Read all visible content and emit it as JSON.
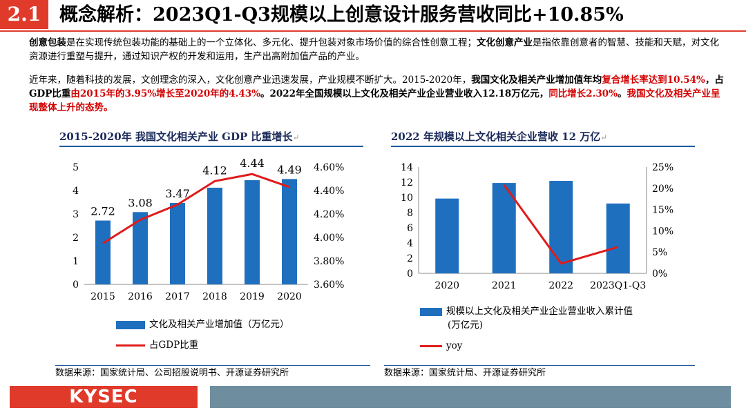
{
  "title": {
    "section_number": "2.1",
    "text": "概念解析：2023Q1-Q3规模以上创意设计服务营收同比+10.85%"
  },
  "paragraph1": {
    "t1": "创意包装",
    "t2": "是在实现传统包装功能的基础上的一个立体化、多元化、提升包装对象市场价值的综合性创意工程；",
    "t3": "文化创意产业",
    "t4": "是指依靠创意者的智慧、技能和天赋，对文化资源进行重塑与提升，通过知识产权的开发和运用，生产出高附加值产品的产业。"
  },
  "paragraph2": {
    "t1": "近年来，随着科技的发展，文创理念的深入，文化创意产业迅速发展，产业规模不断扩大。2015-2020年，",
    "t2": "我国文化及相关产业增加值年均",
    "t3": "复合增长率达到10.54%",
    "t4": "，占GDP比重",
    "t5": "由2015年的3.95%增长至2020年的4.43%",
    "t6": "。2022年全国规模以上文化及相关产业企业营业收入12.18万亿元，",
    "t7": "同比增长2.30%",
    "t8": "。",
    "t9": "我国文化及相关产业呈现整体上升的态势。"
  },
  "left_header": "2015-2020年   我国文化相关产业 GDP 比重增长",
  "right_header": "2022 年规模以上文化相关企业营收 12 万亿",
  "return_mark": "↵",
  "chart_data": [
    {
      "type": "bar",
      "categories": [
        "2015",
        "2016",
        "2017",
        "2018",
        "2019",
        "2020"
      ],
      "series": [
        {
          "name": "文化及相关产业增加值（万亿元）",
          "type": "bar",
          "values": [
            2.72,
            3.08,
            3.47,
            4.12,
            4.44,
            4.49
          ],
          "axis": "left",
          "color": "#1f6fbf"
        },
        {
          "name": "占GDP比重",
          "type": "line",
          "values": [
            3.95,
            4.15,
            4.28,
            4.48,
            4.54,
            4.43
          ],
          "axis": "right",
          "color": "#e01b1b"
        }
      ],
      "value_labels": [
        "2.72",
        "3.08",
        "3.47",
        "4.12",
        "4.44",
        "4.49"
      ],
      "y_left": {
        "min": 0,
        "max": 5,
        "ticks": [
          "0",
          "1",
          "2",
          "3",
          "4",
          "5"
        ]
      },
      "y_right": {
        "min": 3.6,
        "max": 4.6,
        "ticks": [
          "3.60%",
          "3.80%",
          "4.00%",
          "4.20%",
          "4.40%",
          "4.60%"
        ]
      },
      "legend": [
        "文化及相关产业增加值（万亿元）",
        "占GDP比重"
      ]
    },
    {
      "type": "bar",
      "categories": [
        "2020",
        "2021",
        "2022",
        "2023Q1-Q3"
      ],
      "series": [
        {
          "name": "规模以上文化及相关产业企业营业收入累计值(万亿元)",
          "type": "bar",
          "values": [
            9.85,
            11.9,
            12.18,
            9.2
          ],
          "axis": "left",
          "color": "#1f6fbf"
        },
        {
          "name": "yoy",
          "type": "line",
          "values": [
            null,
            20.8,
            2.3,
            6.2
          ],
          "axis": "right",
          "color": "#e01b1b"
        }
      ],
      "y_left": {
        "min": 0,
        "max": 14,
        "ticks": [
          "0",
          "2",
          "4",
          "6",
          "8",
          "10",
          "12",
          "14"
        ]
      },
      "y_right": {
        "min": 0,
        "max": 25,
        "ticks": [
          "0%",
          "5%",
          "10%",
          "15%",
          "20%",
          "25%"
        ]
      },
      "legend": [
        "规模以上文化及相关产业企业营业收入累计值",
        "(万亿元)",
        "yoy"
      ]
    }
  ],
  "source_left": "数据来源：国家统计局、公司招股说明书、开源证券研究所",
  "source_right": "数据来源：国家统计局、开源证券研究所",
  "logo": "KYSEC",
  "colors": {
    "accent": "#e03a2b",
    "bar": "#1f6fbf",
    "line": "#e01b1b",
    "footer_bar": "#6e8ea0"
  }
}
